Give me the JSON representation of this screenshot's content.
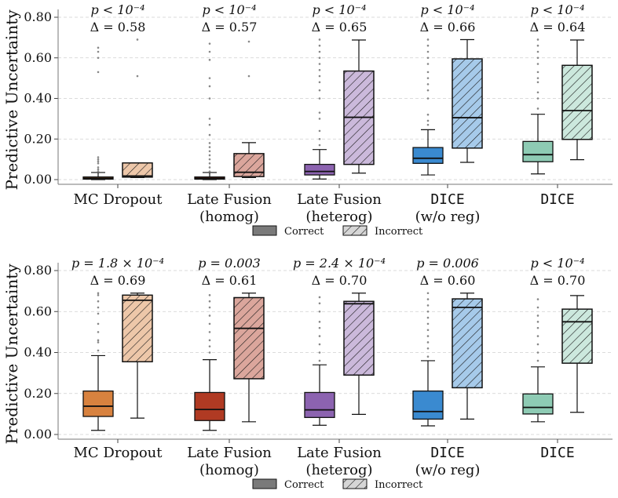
{
  "chart_data": [
    {
      "type": "boxplot",
      "ylabel": "Predictive Uncertainty",
      "ylim": [
        0.0,
        0.85
      ],
      "yticks": [
        0.0,
        0.2,
        0.4,
        0.6,
        0.8
      ],
      "ytick_labels": [
        "0.00",
        "0.20",
        "0.40",
        "0.60",
        "0.80"
      ],
      "grid": true,
      "legend": {
        "placement": "bottom-center",
        "entries": [
          "Correct",
          "Incorrect"
        ]
      },
      "groups": [
        {
          "label_line1": "MC Dropout",
          "label_line2": "",
          "mono": false,
          "color": "#d8823f",
          "pval": "p < 10⁻⁴",
          "delta": "Δ = 0.58",
          "correct": {
            "whislo": 0.0,
            "q1": 0.002,
            "med": 0.006,
            "q3": 0.013,
            "whishi": 0.035,
            "outliers": [
              0.04,
              0.05,
              0.06,
              0.08,
              0.09,
              0.1,
              0.11,
              0.53,
              0.6,
              0.63,
              0.65
            ]
          },
          "incorrect": {
            "whislo": 0.01,
            "q1": 0.012,
            "med": 0.018,
            "q3": 0.082,
            "whishi": 0.082,
            "outliers": [
              0.51,
              0.69
            ]
          }
        },
        {
          "label_line1": "Late Fusion",
          "label_line2": "(homog)",
          "mono": false,
          "color": "#b03a23",
          "pval": "p < 10⁻⁴",
          "delta": "Δ = 0.57",
          "correct": {
            "whislo": 0.0,
            "q1": 0.002,
            "med": 0.006,
            "q3": 0.013,
            "whishi": 0.035,
            "outliers": [
              0.04,
              0.06,
              0.08,
              0.1,
              0.12,
              0.14,
              0.16,
              0.18,
              0.22,
              0.27,
              0.3,
              0.4,
              0.46,
              0.5,
              0.59,
              0.63,
              0.67
            ]
          },
          "incorrect": {
            "whislo": 0.01,
            "q1": 0.015,
            "med": 0.036,
            "q3": 0.128,
            "whishi": 0.182,
            "outliers": [
              0.51,
              0.68
            ]
          }
        },
        {
          "label_line1": "Late Fusion",
          "label_line2": "(heterog)",
          "mono": false,
          "color": "#8c63b0",
          "pval": "p < 10⁻⁴",
          "delta": "Δ = 0.65",
          "correct": {
            "whislo": 0.003,
            "q1": 0.023,
            "med": 0.04,
            "q3": 0.075,
            "whishi": 0.148,
            "outliers": [
              0.17,
              0.2,
              0.24,
              0.3,
              0.33,
              0.4,
              0.44,
              0.48,
              0.51,
              0.54,
              0.57,
              0.6,
              0.63,
              0.66,
              0.69
            ]
          },
          "incorrect": {
            "whislo": 0.032,
            "q1": 0.075,
            "med": 0.307,
            "q3": 0.535,
            "whishi": 0.688,
            "outliers": []
          }
        },
        {
          "label_line1": "DICE",
          "label_line2": "(w/o reg)",
          "mono": true,
          "color": "#3a8ad0",
          "pval": "p < 10⁻⁴",
          "delta": "Δ = 0.66",
          "correct": {
            "whislo": 0.023,
            "q1": 0.08,
            "med": 0.105,
            "q3": 0.158,
            "whishi": 0.246,
            "outliers": [
              0.27,
              0.29,
              0.32,
              0.4,
              0.44,
              0.47,
              0.5,
              0.53,
              0.57,
              0.6,
              0.63,
              0.66,
              0.69
            ]
          },
          "incorrect": {
            "whislo": 0.085,
            "q1": 0.155,
            "med": 0.305,
            "q3": 0.595,
            "whishi": 0.69,
            "outliers": []
          }
        },
        {
          "label_line1": "DICE",
          "label_line2": "",
          "mono": true,
          "color": "#8ecbb4",
          "pval": "p < 10⁻⁴",
          "delta": "Δ = 0.64",
          "correct": {
            "whislo": 0.028,
            "q1": 0.088,
            "med": 0.123,
            "q3": 0.188,
            "whishi": 0.322,
            "outliers": [
              0.35,
              0.4,
              0.43,
              0.48,
              0.5,
              0.53,
              0.57,
              0.6,
              0.63,
              0.66,
              0.69
            ]
          },
          "incorrect": {
            "whislo": 0.098,
            "q1": 0.198,
            "med": 0.34,
            "q3": 0.563,
            "whishi": 0.688,
            "outliers": []
          }
        }
      ]
    },
    {
      "type": "boxplot",
      "ylabel": "Predictive Uncertainty",
      "ylim": [
        0.0,
        0.85
      ],
      "yticks": [
        0.0,
        0.2,
        0.4,
        0.6,
        0.8
      ],
      "ytick_labels": [
        "0.00",
        "0.20",
        "0.40",
        "0.60",
        "0.80"
      ],
      "grid": true,
      "legend": {
        "placement": "bottom-center",
        "entries": [
          "Correct",
          "Incorrect"
        ]
      },
      "groups": [
        {
          "label_line1": "MC Dropout",
          "label_line2": "",
          "mono": false,
          "color": "#d8823f",
          "pval": "p = 1.8 × 10⁻⁴",
          "delta": "Δ = 0.69",
          "correct": {
            "whislo": 0.02,
            "q1": 0.088,
            "med": 0.138,
            "q3": 0.212,
            "whishi": 0.385,
            "outliers": [
              0.41,
              0.45,
              0.46,
              0.5,
              0.54,
              0.59,
              0.62,
              0.65,
              0.68,
              0.69
            ]
          },
          "incorrect": {
            "whislo": 0.08,
            "q1": 0.355,
            "med": 0.655,
            "q3": 0.68,
            "whishi": 0.69,
            "outliers": []
          }
        },
        {
          "label_line1": "Late Fusion",
          "label_line2": "(homog)",
          "mono": false,
          "color": "#b03a23",
          "pval": "p = 0.003",
          "delta": "Δ = 0.61",
          "correct": {
            "whislo": 0.02,
            "q1": 0.068,
            "med": 0.122,
            "q3": 0.205,
            "whishi": 0.365,
            "outliers": [
              0.4,
              0.43,
              0.46,
              0.5,
              0.54,
              0.58,
              0.62,
              0.65,
              0.68
            ]
          },
          "incorrect": {
            "whislo": 0.062,
            "q1": 0.272,
            "med": 0.518,
            "q3": 0.668,
            "whishi": 0.69,
            "outliers": []
          }
        },
        {
          "label_line1": "Late Fusion",
          "label_line2": "(heterog)",
          "mono": false,
          "color": "#8c63b0",
          "pval": "p = 2.4 × 10⁻⁴",
          "delta": "Δ = 0.70",
          "correct": {
            "whislo": 0.045,
            "q1": 0.083,
            "med": 0.12,
            "q3": 0.205,
            "whishi": 0.34,
            "outliers": [
              0.36,
              0.4,
              0.44,
              0.48,
              0.52,
              0.55,
              0.6,
              0.64,
              0.67
            ]
          },
          "incorrect": {
            "whislo": 0.098,
            "q1": 0.29,
            "med": 0.638,
            "q3": 0.65,
            "whishi": 0.69,
            "outliers": []
          }
        },
        {
          "label_line1": "DICE",
          "label_line2": "(w/o reg)",
          "mono": true,
          "color": "#3a8ad0",
          "pval": "p = 0.006",
          "delta": "Δ = 0.60",
          "correct": {
            "whislo": 0.042,
            "q1": 0.075,
            "med": 0.112,
            "q3": 0.212,
            "whishi": 0.36,
            "outliers": [
              0.38,
              0.42,
              0.45,
              0.48,
              0.51,
              0.54,
              0.57,
              0.6,
              0.63,
              0.66,
              0.69
            ]
          },
          "incorrect": {
            "whislo": 0.075,
            "q1": 0.228,
            "med": 0.62,
            "q3": 0.662,
            "whishi": 0.69,
            "outliers": []
          }
        },
        {
          "label_line1": "DICE",
          "label_line2": "",
          "mono": true,
          "color": "#8ecbb4",
          "pval": "p < 10⁻⁴",
          "delta": "Δ = 0.70",
          "correct": {
            "whislo": 0.062,
            "q1": 0.1,
            "med": 0.132,
            "q3": 0.198,
            "whishi": 0.33,
            "outliers": [
              0.36,
              0.4,
              0.44,
              0.48,
              0.52,
              0.55,
              0.58,
              0.62,
              0.66
            ]
          },
          "incorrect": {
            "whislo": 0.108,
            "q1": 0.348,
            "med": 0.55,
            "q3": 0.612,
            "whishi": 0.678,
            "outliers": []
          }
        }
      ]
    }
  ]
}
